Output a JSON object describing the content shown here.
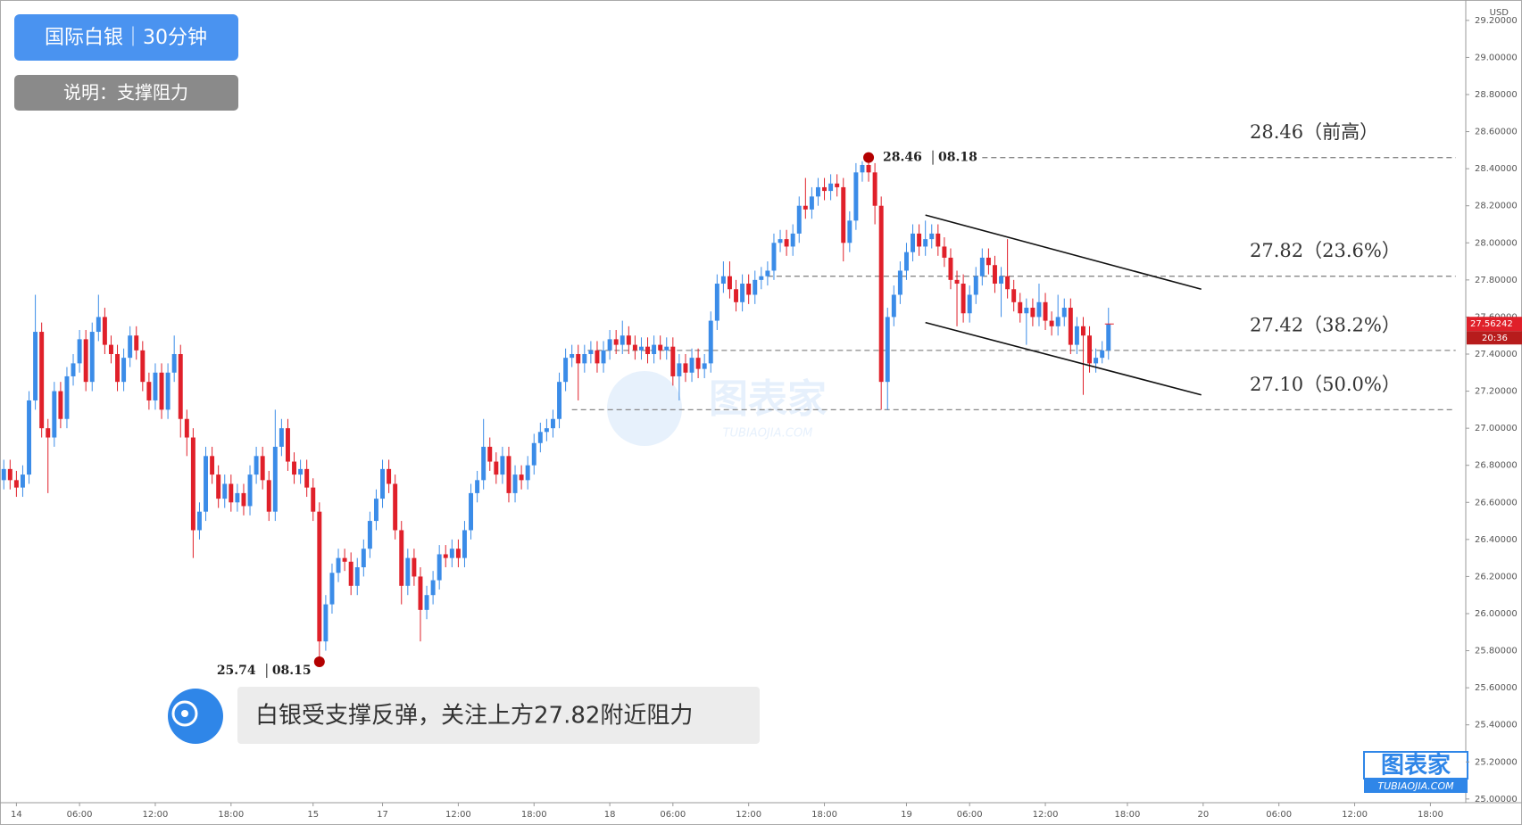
{
  "chart_data": {
    "type": "candlestick",
    "title": "国际白银｜30分钟",
    "subtitle": "说明：支撑阻力",
    "annotation": "白银受支撑反弹，关注上方27.82附近阻力",
    "currency": "USD",
    "watermark": "图表家",
    "watermark_sub": "TUBIAOJIA.COM",
    "up_color": "#3b8ce8",
    "down_color": "#e0202a",
    "xlim": [
      -0.6,
      231.6
    ],
    "ylim": [
      24.98,
      29.31
    ],
    "xticks": [
      {
        "value": 2,
        "label": "14"
      },
      {
        "value": 12,
        "label": "06:00"
      },
      {
        "value": 24,
        "label": "12:00"
      },
      {
        "value": 36,
        "label": "18:00"
      },
      {
        "value": 49,
        "label": "15"
      },
      {
        "value": 60,
        "label": "17"
      },
      {
        "value": 72,
        "label": "12:00"
      },
      {
        "value": 84,
        "label": "18:00"
      },
      {
        "value": 96,
        "label": "18"
      },
      {
        "value": 106,
        "label": "06:00"
      },
      {
        "value": 118,
        "label": "12:00"
      },
      {
        "value": 130,
        "label": "18:00"
      },
      {
        "value": 143,
        "label": "19"
      },
      {
        "value": 153,
        "label": "06:00"
      },
      {
        "value": 165,
        "label": "12:00"
      },
      {
        "value": 178,
        "label": "18:00"
      },
      {
        "value": 190,
        "label": "20"
      },
      {
        "value": 202,
        "label": "06:00"
      },
      {
        "value": 214,
        "label": "12:00"
      },
      {
        "value": 226,
        "label": "18:00"
      }
    ],
    "yticks": [
      {
        "value": 25,
        "label": "25.00000"
      },
      {
        "value": 25.2,
        "label": "25.20000"
      },
      {
        "value": 25.4,
        "label": "25.40000"
      },
      {
        "value": 25.6,
        "label": "25.60000"
      },
      {
        "value": 25.8,
        "label": "25.80000"
      },
      {
        "value": 26,
        "label": "26.00000"
      },
      {
        "value": 26.2,
        "label": "26.20000"
      },
      {
        "value": 26.4,
        "label": "26.40000"
      },
      {
        "value": 26.6,
        "label": "26.60000"
      },
      {
        "value": 26.8,
        "label": "26.80000"
      },
      {
        "value": 27,
        "label": "27.00000"
      },
      {
        "value": 27.2,
        "label": "27.20000"
      },
      {
        "value": 27.4,
        "label": "27.40000"
      },
      {
        "value": 27.6,
        "label": "27.60000"
      },
      {
        "value": 27.8,
        "label": "27.80000"
      },
      {
        "value": 28,
        "label": "28.00000"
      },
      {
        "value": 28.2,
        "label": "28.20000"
      },
      {
        "value": 28.4,
        "label": "28.40000"
      },
      {
        "value": 28.6,
        "label": "28.60000"
      },
      {
        "value": 28.8,
        "label": "28.80000"
      },
      {
        "value": 29,
        "label": "29.00000"
      },
      {
        "value": 29.2,
        "label": "29.20000"
      }
    ],
    "levels": [
      {
        "value": 28.46,
        "label": "28.46（前高）"
      },
      {
        "value": 27.82,
        "label": "27.82（23.6%）"
      },
      {
        "value": 27.42,
        "label": "27.42（38.2%）"
      },
      {
        "value": 27.1,
        "label": "27.10（50.0%）"
      }
    ],
    "high_mark": {
      "value": 28.46,
      "date": "08.18"
    },
    "low_mark": {
      "value": 25.74,
      "date": "08.15"
    },
    "last_price": 27.56242,
    "countdown": "20:36",
    "channel": [
      {
        "x": [
          146,
          189.7
        ],
        "y": [
          28.15,
          27.75
        ]
      },
      {
        "x": [
          146,
          189.7
        ],
        "y": [
          27.57,
          27.18
        ]
      }
    ],
    "ohlc": [
      [
        26.72,
        26.83,
        26.67,
        26.78
      ],
      [
        26.78,
        26.83,
        26.67,
        26.72
      ],
      [
        26.72,
        26.77,
        26.63,
        26.68
      ],
      [
        26.68,
        26.8,
        26.63,
        26.75
      ],
      [
        26.75,
        27.2,
        26.7,
        27.15
      ],
      [
        27.15,
        27.72,
        27.1,
        27.52
      ],
      [
        27.52,
        27.57,
        26.95,
        27.0
      ],
      [
        27.0,
        27.05,
        26.65,
        26.95
      ],
      [
        26.95,
        27.25,
        26.9,
        27.2
      ],
      [
        27.2,
        27.25,
        27.0,
        27.05
      ],
      [
        27.05,
        27.33,
        27.0,
        27.28
      ],
      [
        27.28,
        27.4,
        27.23,
        27.35
      ],
      [
        27.35,
        27.53,
        27.3,
        27.48
      ],
      [
        27.48,
        27.53,
        27.2,
        27.25
      ],
      [
        27.25,
        27.57,
        27.2,
        27.52
      ],
      [
        27.52,
        27.72,
        27.47,
        27.6
      ],
      [
        27.6,
        27.65,
        27.4,
        27.45
      ],
      [
        27.45,
        27.5,
        27.35,
        27.4
      ],
      [
        27.4,
        27.45,
        27.2,
        27.25
      ],
      [
        27.25,
        27.43,
        27.2,
        27.38
      ],
      [
        27.38,
        27.55,
        27.33,
        27.5
      ],
      [
        27.5,
        27.55,
        27.37,
        27.42
      ],
      [
        27.42,
        27.47,
        27.2,
        27.25
      ],
      [
        27.25,
        27.3,
        27.1,
        27.15
      ],
      [
        27.15,
        27.35,
        27.1,
        27.3
      ],
      [
        27.3,
        27.35,
        27.05,
        27.1
      ],
      [
        27.1,
        27.35,
        27.05,
        27.3
      ],
      [
        27.3,
        27.5,
        27.25,
        27.4
      ],
      [
        27.4,
        27.45,
        26.95,
        27.05
      ],
      [
        27.05,
        27.1,
        26.85,
        26.95
      ],
      [
        26.95,
        27.0,
        26.3,
        26.45
      ],
      [
        26.45,
        26.6,
        26.4,
        26.55
      ],
      [
        26.55,
        26.9,
        26.5,
        26.85
      ],
      [
        26.85,
        26.9,
        26.7,
        26.75
      ],
      [
        26.75,
        26.8,
        26.57,
        26.62
      ],
      [
        26.62,
        26.75,
        26.57,
        26.7
      ],
      [
        26.7,
        26.75,
        26.55,
        26.6
      ],
      [
        26.6,
        26.7,
        26.55,
        26.65
      ],
      [
        26.65,
        26.7,
        26.53,
        26.58
      ],
      [
        26.58,
        26.8,
        26.53,
        26.75
      ],
      [
        26.75,
        26.9,
        26.7,
        26.85
      ],
      [
        26.85,
        26.9,
        26.67,
        26.72
      ],
      [
        26.72,
        26.77,
        26.5,
        26.55
      ],
      [
        26.55,
        27.1,
        26.5,
        26.9
      ],
      [
        26.9,
        27.05,
        26.85,
        27.0
      ],
      [
        27.0,
        27.05,
        26.77,
        26.82
      ],
      [
        26.82,
        26.87,
        26.7,
        26.75
      ],
      [
        26.75,
        26.83,
        26.7,
        26.78
      ],
      [
        26.78,
        26.83,
        26.63,
        26.68
      ],
      [
        26.68,
        26.73,
        26.5,
        26.55
      ],
      [
        26.55,
        26.6,
        25.74,
        25.85
      ],
      [
        25.85,
        26.1,
        25.8,
        26.05
      ],
      [
        26.05,
        26.27,
        26.0,
        26.22
      ],
      [
        26.22,
        26.35,
        26.17,
        26.3
      ],
      [
        26.3,
        26.35,
        26.23,
        26.28
      ],
      [
        26.28,
        26.33,
        26.1,
        26.15
      ],
      [
        26.15,
        26.3,
        26.1,
        26.25
      ],
      [
        26.25,
        26.4,
        26.2,
        26.35
      ],
      [
        26.35,
        26.55,
        26.3,
        26.5
      ],
      [
        26.5,
        26.67,
        26.45,
        26.62
      ],
      [
        26.62,
        26.83,
        26.57,
        26.78
      ],
      [
        26.78,
        26.83,
        26.65,
        26.7
      ],
      [
        26.7,
        26.75,
        26.4,
        26.45
      ],
      [
        26.45,
        26.5,
        26.05,
        26.15
      ],
      [
        26.15,
        26.35,
        26.1,
        26.3
      ],
      [
        26.3,
        26.35,
        26.15,
        26.2
      ],
      [
        26.2,
        26.25,
        25.85,
        26.02
      ],
      [
        26.02,
        26.15,
        25.97,
        26.1
      ],
      [
        26.1,
        26.23,
        26.05,
        26.18
      ],
      [
        26.18,
        26.37,
        26.13,
        26.32
      ],
      [
        26.32,
        26.37,
        26.25,
        26.3
      ],
      [
        26.3,
        26.4,
        26.25,
        26.35
      ],
      [
        26.35,
        26.4,
        26.25,
        26.3
      ],
      [
        26.3,
        26.5,
        26.25,
        26.45
      ],
      [
        26.45,
        26.7,
        26.4,
        26.65
      ],
      [
        26.65,
        26.77,
        26.6,
        26.72
      ],
      [
        26.72,
        27.05,
        26.67,
        26.9
      ],
      [
        26.9,
        26.95,
        26.77,
        26.82
      ],
      [
        26.82,
        26.87,
        26.7,
        26.75
      ],
      [
        26.75,
        26.9,
        26.7,
        26.85
      ],
      [
        26.85,
        26.9,
        26.6,
        26.65
      ],
      [
        26.65,
        26.8,
        26.6,
        26.75
      ],
      [
        26.75,
        26.8,
        26.67,
        26.72
      ],
      [
        26.72,
        26.85,
        26.67,
        26.8
      ],
      [
        26.8,
        26.97,
        26.75,
        26.92
      ],
      [
        26.92,
        27.03,
        26.87,
        26.98
      ],
      [
        26.98,
        27.05,
        26.93,
        27.0
      ],
      [
        27.0,
        27.1,
        26.95,
        27.05
      ],
      [
        27.05,
        27.3,
        27.0,
        27.25
      ],
      [
        27.25,
        27.43,
        27.2,
        27.38
      ],
      [
        27.38,
        27.45,
        27.33,
        27.4
      ],
      [
        27.4,
        27.45,
        27.15,
        27.35
      ],
      [
        27.35,
        27.45,
        27.3,
        27.4
      ],
      [
        27.4,
        27.47,
        27.35,
        27.42
      ],
      [
        27.42,
        27.47,
        27.3,
        27.35
      ],
      [
        27.35,
        27.47,
        27.3,
        27.42
      ],
      [
        27.42,
        27.53,
        27.37,
        27.48
      ],
      [
        27.48,
        27.53,
        27.4,
        27.45
      ],
      [
        27.45,
        27.58,
        27.4,
        27.5
      ],
      [
        27.5,
        27.55,
        27.4,
        27.45
      ],
      [
        27.45,
        27.5,
        27.37,
        27.42
      ],
      [
        27.42,
        27.49,
        27.37,
        27.44
      ],
      [
        27.44,
        27.49,
        27.35,
        27.4
      ],
      [
        27.4,
        27.5,
        27.35,
        27.45
      ],
      [
        27.45,
        27.5,
        27.37,
        27.42
      ],
      [
        27.42,
        27.49,
        27.37,
        27.44
      ],
      [
        27.44,
        27.49,
        27.23,
        27.28
      ],
      [
        27.28,
        27.4,
        27.15,
        27.35
      ],
      [
        27.35,
        27.4,
        27.25,
        27.3
      ],
      [
        27.3,
        27.43,
        27.25,
        27.38
      ],
      [
        27.38,
        27.43,
        27.27,
        27.32
      ],
      [
        27.32,
        27.4,
        27.27,
        27.35
      ],
      [
        27.35,
        27.63,
        27.3,
        27.58
      ],
      [
        27.58,
        27.83,
        27.53,
        27.78
      ],
      [
        27.78,
        27.9,
        27.73,
        27.82
      ],
      [
        27.82,
        27.9,
        27.7,
        27.75
      ],
      [
        27.75,
        27.8,
        27.63,
        27.68
      ],
      [
        27.68,
        27.83,
        27.63,
        27.78
      ],
      [
        27.78,
        27.83,
        27.67,
        27.72
      ],
      [
        27.72,
        27.85,
        27.67,
        27.8
      ],
      [
        27.8,
        27.87,
        27.75,
        27.82
      ],
      [
        27.82,
        27.9,
        27.77,
        27.85
      ],
      [
        27.85,
        28.05,
        27.8,
        28.0
      ],
      [
        28.0,
        28.07,
        27.95,
        28.02
      ],
      [
        28.02,
        28.07,
        27.93,
        27.98
      ],
      [
        27.98,
        28.1,
        27.93,
        28.05
      ],
      [
        28.05,
        28.25,
        28.0,
        28.2
      ],
      [
        28.2,
        28.35,
        28.13,
        28.18
      ],
      [
        28.18,
        28.3,
        28.13,
        28.25
      ],
      [
        28.25,
        28.35,
        28.2,
        28.3
      ],
      [
        28.3,
        28.35,
        28.23,
        28.28
      ],
      [
        28.28,
        28.37,
        28.23,
        28.32
      ],
      [
        28.32,
        28.37,
        28.25,
        28.3
      ],
      [
        28.3,
        28.35,
        27.9,
        28.0
      ],
      [
        28.0,
        28.17,
        27.95,
        28.12
      ],
      [
        28.12,
        28.43,
        28.07,
        28.38
      ],
      [
        28.38,
        28.44,
        28.33,
        28.42
      ],
      [
        28.42,
        28.46,
        28.33,
        28.38
      ],
      [
        28.38,
        28.43,
        28.1,
        28.2
      ],
      [
        28.2,
        28.25,
        27.1,
        27.25
      ],
      [
        27.25,
        27.65,
        27.1,
        27.6
      ],
      [
        27.6,
        27.77,
        27.55,
        27.72
      ],
      [
        27.72,
        27.9,
        27.67,
        27.85
      ],
      [
        27.85,
        28.0,
        27.8,
        27.95
      ],
      [
        27.95,
        28.1,
        27.9,
        28.05
      ],
      [
        28.05,
        28.1,
        27.93,
        27.98
      ],
      [
        27.98,
        28.12,
        27.93,
        28.02
      ],
      [
        28.02,
        28.1,
        27.97,
        28.05
      ],
      [
        28.05,
        28.1,
        27.93,
        27.98
      ],
      [
        27.98,
        28.03,
        27.87,
        27.92
      ],
      [
        27.92,
        27.97,
        27.75,
        27.8
      ],
      [
        27.8,
        27.85,
        27.55,
        27.78
      ],
      [
        27.78,
        27.83,
        27.57,
        27.62
      ],
      [
        27.62,
        27.77,
        27.57,
        27.72
      ],
      [
        27.72,
        27.87,
        27.67,
        27.82
      ],
      [
        27.82,
        27.97,
        27.77,
        27.92
      ],
      [
        27.92,
        27.97,
        27.83,
        27.88
      ],
      [
        27.88,
        27.93,
        27.73,
        27.78
      ],
      [
        27.78,
        27.87,
        27.6,
        27.82
      ],
      [
        27.82,
        28.02,
        27.7,
        27.75
      ],
      [
        27.75,
        27.8,
        27.63,
        27.68
      ],
      [
        27.68,
        27.73,
        27.57,
        27.62
      ],
      [
        27.62,
        27.7,
        27.45,
        27.65
      ],
      [
        27.65,
        27.7,
        27.55,
        27.6
      ],
      [
        27.6,
        27.78,
        27.55,
        27.68
      ],
      [
        27.68,
        27.73,
        27.53,
        27.58
      ],
      [
        27.58,
        27.63,
        27.5,
        27.55
      ],
      [
        27.55,
        27.72,
        27.5,
        27.6
      ],
      [
        27.6,
        27.7,
        27.55,
        27.65
      ],
      [
        27.65,
        27.7,
        27.4,
        27.45
      ],
      [
        27.45,
        27.6,
        27.4,
        27.55
      ],
      [
        27.55,
        27.6,
        27.18,
        27.5
      ],
      [
        27.5,
        27.55,
        27.3,
        27.35
      ],
      [
        27.35,
        27.43,
        27.3,
        27.38
      ],
      [
        27.38,
        27.47,
        27.35,
        27.42
      ],
      [
        27.42,
        27.65,
        27.37,
        27.56
      ]
    ]
  }
}
